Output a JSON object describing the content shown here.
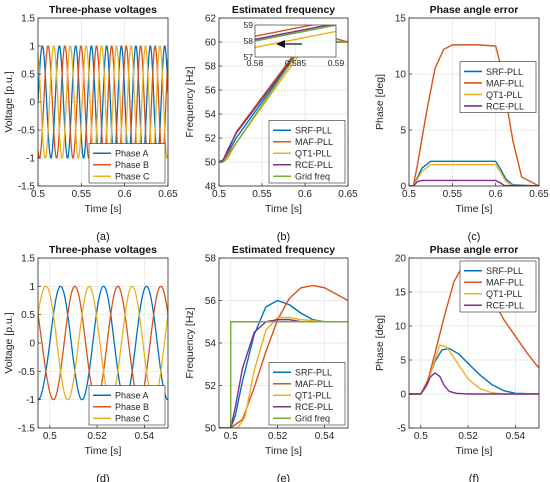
{
  "chart_data": [
    {
      "type": "line",
      "title": "Three-phase voltages",
      "xlabel": "Time [s]",
      "ylabel": "Voltage [p.u.]",
      "xlim": [
        0.5,
        0.65
      ],
      "ylim": [
        -1.5,
        1.5
      ],
      "xticks": [
        0.5,
        0.55,
        0.6,
        0.65
      ],
      "yticks": [
        -1.5,
        -1,
        -0.5,
        0,
        0.5,
        1,
        1.5
      ],
      "grid": true,
      "legend": "bottom-right",
      "panel_label": "(a)",
      "wave": {
        "amplitude": 1,
        "f0": 50,
        "f1": 60,
        "t_step": 0.505,
        "t_settle": 0.6
      },
      "series": [
        {
          "name": "Phase A",
          "phase_deg": 0,
          "color": "#0072BD"
        },
        {
          "name": "Phase B",
          "phase_deg": -120,
          "color": "#D95319"
        },
        {
          "name": "Phase C",
          "phase_deg": 120,
          "color": "#EDB120"
        }
      ]
    },
    {
      "type": "line",
      "title": "Estimated frequency",
      "xlabel": "Time [s]",
      "ylabel": "Frequency [Hz]",
      "xlim": [
        0.5,
        0.65
      ],
      "ylim": [
        48,
        62
      ],
      "xticks": [
        0.5,
        0.55,
        0.6,
        0.65
      ],
      "yticks": [
        48,
        50,
        52,
        54,
        56,
        58,
        60,
        62
      ],
      "grid": true,
      "legend": "bottom-right",
      "panel_label": "(b)",
      "series": [
        {
          "name": "SRF-PLL",
          "color": "#0072BD",
          "x": [
            0.5,
            0.505,
            0.51,
            0.52,
            0.6,
            0.605,
            0.61,
            0.62,
            0.65
          ],
          "y": [
            50,
            50.1,
            50.7,
            52.0,
            60.0,
            60.3,
            60.4,
            60.1,
            60.0
          ]
        },
        {
          "name": "MAF-PLL",
          "color": "#D95319",
          "x": [
            0.5,
            0.505,
            0.51,
            0.52,
            0.6,
            0.608,
            0.615,
            0.625,
            0.635,
            0.65
          ],
          "y": [
            50,
            50.1,
            50.8,
            52.5,
            60.2,
            60.8,
            61.0,
            60.7,
            60.3,
            60.0
          ]
        },
        {
          "name": "QT1-PLL",
          "color": "#EDB120",
          "x": [
            0.5,
            0.505,
            0.51,
            0.52,
            0.6,
            0.61,
            0.62,
            0.65
          ],
          "y": [
            50,
            50.0,
            50.3,
            51.6,
            59.6,
            60.2,
            60.0,
            60.0
          ]
        },
        {
          "name": "RCE-PLL",
          "color": "#7E2F8E",
          "x": [
            0.5,
            0.505,
            0.51,
            0.52,
            0.6,
            0.603,
            0.61,
            0.65
          ],
          "y": [
            50,
            50.2,
            51.0,
            52.4,
            60.0,
            60.1,
            60.0,
            60.0
          ]
        },
        {
          "name": "Grid freq",
          "color": "#77AC30",
          "x": [
            0.5,
            0.505,
            0.6,
            0.65
          ],
          "y": [
            50,
            50,
            60,
            60
          ]
        }
      ],
      "inset": {
        "xlim": [
          0.58,
          0.59
        ],
        "ylim": [
          57,
          59
        ],
        "xticks": [
          0.58,
          0.585,
          0.59
        ],
        "yticks": [
          57,
          58,
          59
        ],
        "series": [
          {
            "name": "SRF-PLL",
            "color": "#0072BD",
            "x": [
              0.58,
              0.59
            ],
            "y": [
              58.0,
              59.0
            ]
          },
          {
            "name": "MAF-PLL",
            "color": "#D95319",
            "x": [
              0.58,
              0.59
            ],
            "y": [
              58.3,
              59.3
            ]
          },
          {
            "name": "QT1-PLL",
            "color": "#EDB120",
            "x": [
              0.58,
              0.59
            ],
            "y": [
              57.6,
              58.6
            ]
          },
          {
            "name": "RCE-PLL",
            "color": "#7E2F8E",
            "x": [
              0.58,
              0.59
            ],
            "y": [
              58.1,
              59.1
            ]
          },
          {
            "name": "Grid freq",
            "color": "#77AC30",
            "x": [
              0.58,
              0.59
            ],
            "y": [
              58.0,
              59.0
            ]
          }
        ]
      }
    },
    {
      "type": "line",
      "title": "Phase angle error",
      "xlabel": "Time [s]",
      "ylabel": "Phase [deg]",
      "xlim": [
        0.5,
        0.65
      ],
      "ylim": [
        0,
        15
      ],
      "xticks": [
        0.5,
        0.55,
        0.6,
        0.65
      ],
      "yticks": [
        0,
        5,
        10,
        15
      ],
      "grid": true,
      "legend": "center-right",
      "panel_label": "(c)",
      "series": [
        {
          "name": "SRF-PLL",
          "color": "#0072BD",
          "x": [
            0.5,
            0.505,
            0.515,
            0.525,
            0.6,
            0.605,
            0.612,
            0.62,
            0.65
          ],
          "y": [
            0,
            0,
            1.6,
            2.2,
            2.2,
            1.6,
            0.6,
            0.1,
            0
          ]
        },
        {
          "name": "MAF-PLL",
          "color": "#D95319",
          "x": [
            0.5,
            0.505,
            0.51,
            0.52,
            0.53,
            0.54,
            0.55,
            0.58,
            0.6,
            0.605,
            0.61,
            0.62,
            0.63,
            0.65
          ],
          "y": [
            0,
            0,
            2.0,
            6.5,
            10.5,
            12.2,
            12.6,
            12.6,
            12.5,
            11.0,
            8.5,
            4.0,
            0.8,
            0
          ]
        },
        {
          "name": "QT1-PLL",
          "color": "#EDB120",
          "x": [
            0.5,
            0.505,
            0.515,
            0.525,
            0.6,
            0.605,
            0.612,
            0.62,
            0.65
          ],
          "y": [
            0,
            0,
            1.3,
            1.9,
            1.9,
            1.3,
            0.4,
            0.05,
            0
          ]
        },
        {
          "name": "RCE-PLL",
          "color": "#7E2F8E",
          "x": [
            0.5,
            0.505,
            0.51,
            0.515,
            0.6,
            0.605,
            0.61,
            0.65
          ],
          "y": [
            0,
            0,
            0.4,
            0.5,
            0.5,
            0.3,
            0.05,
            0
          ]
        }
      ]
    },
    {
      "type": "line",
      "title": "Three-phase voltages",
      "xlabel": "Time [s]",
      "ylabel": "Voltage [p.u.]",
      "xlim": [
        0.495,
        0.55
      ],
      "ylim": [
        -1.5,
        1.5
      ],
      "xticks": [
        0.5,
        0.52,
        0.54
      ],
      "yticks": [
        -1.5,
        -1,
        -0.5,
        0,
        0.5,
        1,
        1.5
      ],
      "grid": true,
      "legend": "bottom-right",
      "panel_label": "(d)",
      "wave": {
        "amplitude": 1,
        "f0": 50,
        "f1": 55,
        "t_step": 0.5,
        "t_settle": 0.5
      },
      "series": [
        {
          "name": "Phase A",
          "phase_deg": 0,
          "color": "#0072BD"
        },
        {
          "name": "Phase B",
          "phase_deg": -120,
          "color": "#D95319"
        },
        {
          "name": "Phase C",
          "phase_deg": 120,
          "color": "#EDB120"
        }
      ]
    },
    {
      "type": "line",
      "title": "Estimated frequency",
      "xlabel": "Time [s]",
      "ylabel": "Frequency [Hz]",
      "xlim": [
        0.495,
        0.55
      ],
      "ylim": [
        50,
        58
      ],
      "xticks": [
        0.5,
        0.52,
        0.54
      ],
      "yticks": [
        50,
        52,
        54,
        56,
        58
      ],
      "grid": true,
      "legend": "bottom-right",
      "panel_label": "(e)",
      "series": [
        {
          "name": "SRF-PLL",
          "color": "#0072BD",
          "x": [
            0.495,
            0.5,
            0.502,
            0.505,
            0.51,
            0.515,
            0.52,
            0.525,
            0.53,
            0.535,
            0.54,
            0.545,
            0.55
          ],
          "y": [
            50,
            50,
            50.6,
            52.2,
            54.4,
            55.7,
            56.0,
            55.8,
            55.4,
            55.1,
            55.0,
            55.0,
            55.0
          ]
        },
        {
          "name": "MAF-PLL",
          "color": "#D95319",
          "x": [
            0.495,
            0.5,
            0.505,
            0.51,
            0.515,
            0.52,
            0.525,
            0.53,
            0.535,
            0.54,
            0.545,
            0.55
          ],
          "y": [
            50,
            50,
            50.4,
            51.9,
            53.6,
            55.1,
            56.1,
            56.6,
            56.7,
            56.6,
            56.3,
            56.0
          ]
        },
        {
          "name": "QT1-PLL",
          "color": "#EDB120",
          "x": [
            0.495,
            0.5,
            0.503,
            0.506,
            0.51,
            0.515,
            0.52,
            0.525,
            0.53,
            0.54,
            0.55
          ],
          "y": [
            50,
            50,
            50.0,
            50.5,
            52.7,
            54.6,
            55.2,
            55.2,
            55.1,
            55.0,
            55.0
          ]
        },
        {
          "name": "RCE-PLL",
          "color": "#7E2F8E",
          "x": [
            0.495,
            0.5,
            0.502,
            0.505,
            0.51,
            0.515,
            0.52,
            0.525,
            0.53,
            0.55
          ],
          "y": [
            50,
            50,
            51.0,
            52.8,
            54.5,
            55.0,
            55.1,
            55.1,
            55.0,
            55.0
          ]
        },
        {
          "name": "Grid freq",
          "color": "#77AC30",
          "x": [
            0.495,
            0.5,
            0.5,
            0.55
          ],
          "y": [
            50,
            50,
            55,
            55
          ]
        }
      ]
    },
    {
      "type": "line",
      "title": "Phase angle error",
      "xlabel": "Time [s]",
      "ylabel": "Phase [deg]",
      "xlim": [
        0.495,
        0.55
      ],
      "ylim": [
        -5,
        20
      ],
      "xticks": [
        0.5,
        0.52,
        0.54
      ],
      "yticks": [
        -5,
        0,
        5,
        10,
        15,
        20
      ],
      "grid": true,
      "legend": "top-right",
      "panel_label": "(f)",
      "series": [
        {
          "name": "SRF-PLL",
          "color": "#0072BD",
          "x": [
            0.495,
            0.5,
            0.503,
            0.506,
            0.509,
            0.512,
            0.516,
            0.52,
            0.525,
            0.53,
            0.535,
            0.54,
            0.55
          ],
          "y": [
            0,
            0,
            2.0,
            4.8,
            6.5,
            6.7,
            5.9,
            4.5,
            2.8,
            1.4,
            0.5,
            0.1,
            0
          ]
        },
        {
          "name": "MAF-PLL",
          "color": "#D95319",
          "x": [
            0.495,
            0.5,
            0.503,
            0.506,
            0.51,
            0.514,
            0.518,
            0.522,
            0.526,
            0.53,
            0.535,
            0.54,
            0.545,
            0.55
          ],
          "y": [
            0,
            0,
            2.0,
            6.0,
            11.5,
            16.5,
            19.0,
            18.6,
            16.8,
            14.2,
            11.0,
            8.5,
            6.0,
            3.8
          ]
        },
        {
          "name": "QT1-PLL",
          "color": "#EDB120",
          "x": [
            0.495,
            0.5,
            0.503,
            0.505,
            0.508,
            0.511,
            0.515,
            0.52,
            0.525,
            0.53,
            0.535,
            0.55
          ],
          "y": [
            0,
            0,
            1.5,
            4.0,
            7.2,
            6.9,
            4.8,
            2.2,
            0.8,
            0.2,
            0.0,
            0
          ]
        },
        {
          "name": "RCE-PLL",
          "color": "#7E2F8E",
          "x": [
            0.495,
            0.5,
            0.502,
            0.504,
            0.506,
            0.508,
            0.51,
            0.512,
            0.515,
            0.52,
            0.55
          ],
          "y": [
            0,
            0,
            1.0,
            2.5,
            3.1,
            2.6,
            1.2,
            0.4,
            0.1,
            0,
            0
          ]
        }
      ]
    }
  ]
}
